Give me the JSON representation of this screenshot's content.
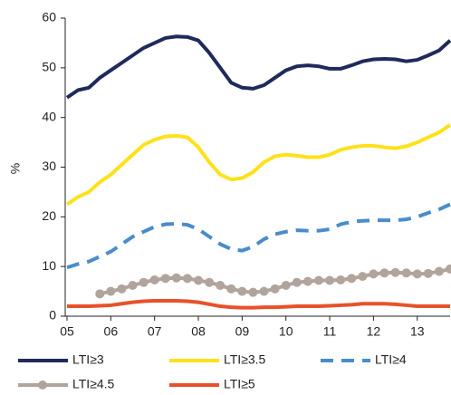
{
  "chart_data": {
    "type": "line",
    "y_label": "%",
    "x": [
      5,
      5.25,
      5.5,
      5.75,
      6,
      6.25,
      6.5,
      6.75,
      7,
      7.25,
      7.5,
      7.75,
      8,
      8.25,
      8.5,
      8.75,
      9,
      9.25,
      9.5,
      9.75,
      10,
      10.25,
      10.5,
      10.75,
      11,
      11.25,
      11.5,
      11.75,
      12,
      12.25,
      12.5,
      12.75,
      13,
      13.25,
      13.5,
      13.75
    ],
    "xlim": [
      5,
      13.75
    ],
    "xticks": [
      {
        "value": 5,
        "label": "05"
      },
      {
        "value": 6,
        "label": "06"
      },
      {
        "value": 7,
        "label": "07"
      },
      {
        "value": 8,
        "label": "08"
      },
      {
        "value": 9,
        "label": "09"
      },
      {
        "value": 10,
        "label": "10"
      },
      {
        "value": 11,
        "label": "11"
      },
      {
        "value": 12,
        "label": "12"
      },
      {
        "value": 13,
        "label": "13"
      }
    ],
    "ylim": [
      0,
      60
    ],
    "yticks": [
      0,
      10,
      20,
      30,
      40,
      50,
      60
    ],
    "series": [
      {
        "name": "LTI≥3",
        "color": "#1f2a5c",
        "dash": false,
        "marker": null,
        "values": [
          44,
          45.5,
          46,
          48,
          49.5,
          51,
          52.5,
          54,
          55,
          56,
          56.3,
          56.2,
          55.5,
          53,
          50,
          47,
          46,
          45.8,
          46.5,
          48,
          49.5,
          50.3,
          50.5,
          50.3,
          49.8,
          49.8,
          50.5,
          51.3,
          51.7,
          51.8,
          51.7,
          51.3,
          51.6,
          52.5,
          53.5,
          55.5
        ]
      },
      {
        "name": "LTI≥3.5",
        "color": "#ffe11a",
        "dash": false,
        "marker": null,
        "values": [
          22.5,
          24,
          25,
          27,
          28.5,
          30.5,
          32.5,
          34.5,
          35.5,
          36.2,
          36.3,
          36,
          34,
          31,
          28.5,
          27.5,
          27.8,
          29,
          31,
          32.2,
          32.5,
          32.3,
          32,
          32,
          32.5,
          33.5,
          34,
          34.3,
          34.3,
          34,
          33.8,
          34.2,
          35,
          36,
          37,
          38.5
        ]
      },
      {
        "name": "LTI≥4",
        "color": "#4a8ccb",
        "dash": true,
        "marker": null,
        "values": [
          9.8,
          10.5,
          11,
          12,
          13,
          14.5,
          16,
          17,
          18,
          18.5,
          18.6,
          18.4,
          17.5,
          16,
          14.5,
          13.5,
          13.2,
          14,
          15.5,
          16.5,
          17,
          17.3,
          17.2,
          17.2,
          17.5,
          18.5,
          19,
          19.2,
          19.3,
          19.3,
          19.3,
          19.5,
          20,
          20.8,
          21.5,
          22.5
        ]
      },
      {
        "name": "LTI≥4.5",
        "color": "#b0a49c",
        "dash": false,
        "marker": "circle",
        "values": [
          null,
          null,
          null,
          4.5,
          5,
          5.5,
          6.2,
          6.8,
          7.3,
          7.6,
          7.7,
          7.6,
          7.2,
          6.8,
          6.2,
          5.5,
          5,
          4.8,
          5,
          5.5,
          6.2,
          6.8,
          7,
          7.2,
          7.2,
          7.3,
          7.6,
          8,
          8.5,
          8.7,
          8.8,
          8.7,
          8.5,
          8.6,
          9,
          9.5
        ]
      },
      {
        "name": "LTI≥5",
        "color": "#e8512a",
        "dash": false,
        "marker": null,
        "values": [
          2,
          2,
          2,
          2.1,
          2.2,
          2.5,
          2.8,
          3,
          3.1,
          3.1,
          3.1,
          3,
          2.8,
          2.4,
          2,
          1.8,
          1.7,
          1.7,
          1.8,
          1.8,
          1.9,
          2,
          2,
          2,
          2.1,
          2.2,
          2.3,
          2.5,
          2.5,
          2.5,
          2.4,
          2.2,
          2,
          2,
          2,
          2
        ]
      }
    ]
  }
}
